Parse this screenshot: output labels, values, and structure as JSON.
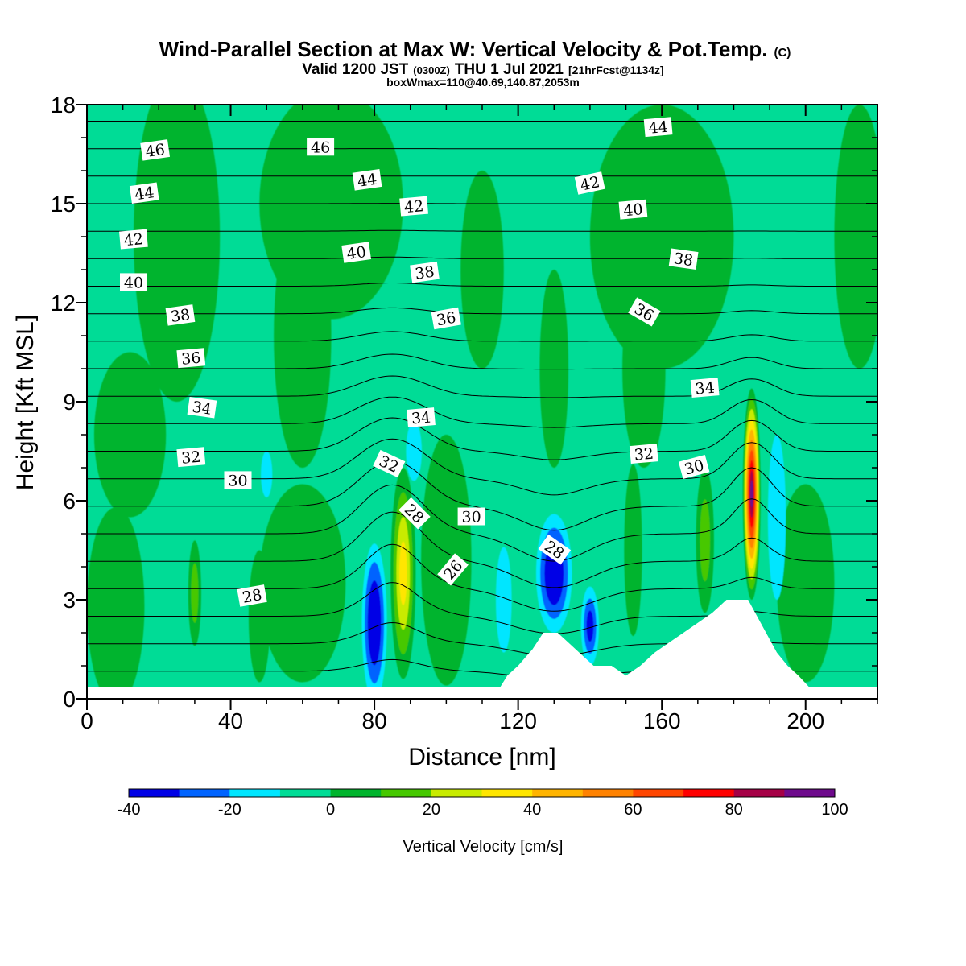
{
  "header": {
    "title": "Wind-Parallel Section at Max W: Vertical Velocity & Pot.Temp.",
    "title_mark": "(C)",
    "valid_prefix": "Valid 1200 JST",
    "valid_utc": "(0300Z)",
    "valid_date": "THU 1 Jul 2021",
    "forecast": "[21hrFcst@1134z]",
    "boxinfo": "boxWmax=110@40.69,140.87,2053m"
  },
  "chart_data": {
    "type": "heatmap",
    "xlabel": "Distance [nm]",
    "ylabel": "Height [Kft MSL]",
    "xlim": [
      0,
      220
    ],
    "ylim": [
      0,
      18
    ],
    "xticks": [
      "0",
      "40",
      "80",
      "120",
      "160",
      "200"
    ],
    "yticks": [
      "0",
      "3",
      "6",
      "9",
      "12",
      "15",
      "18"
    ],
    "colorbar": {
      "label": "Vertical Velocity [cm/s]",
      "tick_labels": [
        "-40",
        "-20",
        "0",
        "20",
        "40",
        "60",
        "80",
        "100"
      ],
      "levels": [
        -40,
        -30,
        -20,
        -10,
        0,
        10,
        20,
        30,
        40,
        50,
        60,
        70,
        80,
        90,
        100
      ],
      "colors": [
        "#0000e6",
        "#0064ff",
        "#00e6ff",
        "#00dc96",
        "#00b42d",
        "#46c800",
        "#c8eb00",
        "#ffe600",
        "#ffb400",
        "#ff8200",
        "#ff4600",
        "#ff0000",
        "#a50046",
        "#6e0a8c"
      ]
    },
    "background_level_color": "#00dc96",
    "wfield": [
      {
        "x": 80,
        "y": 2.3,
        "rx": 3.5,
        "ry": 2.4,
        "value": -40
      },
      {
        "x": 130,
        "y": 3.8,
        "rx": 5,
        "ry": 1.8,
        "value": -40
      },
      {
        "x": 140,
        "y": 2.2,
        "rx": 2.5,
        "ry": 1.2,
        "value": -35
      },
      {
        "x": 50,
        "y": 6.8,
        "rx": 1.6,
        "ry": 0.7,
        "value": -15
      },
      {
        "x": 91,
        "y": 7.5,
        "rx": 2.2,
        "ry": 0.9,
        "value": -15
      },
      {
        "x": 116,
        "y": 3.0,
        "rx": 2.2,
        "ry": 1.6,
        "value": -15
      },
      {
        "x": 192,
        "y": 5.5,
        "rx": 2.5,
        "ry": 2.5,
        "value": -15
      },
      {
        "x": 88,
        "y": 3.8,
        "rx": 3.5,
        "ry": 3.2,
        "value": 45
      },
      {
        "x": 185,
        "y": 6.2,
        "rx": 2.5,
        "ry": 3.2,
        "value": 100
      },
      {
        "x": 30,
        "y": 3.2,
        "rx": 1.8,
        "ry": 1.6,
        "value": 25
      },
      {
        "x": 172,
        "y": 4.8,
        "rx": 2.5,
        "ry": 2.2,
        "value": 25
      },
      {
        "x": 152,
        "y": 4.5,
        "rx": 2.5,
        "ry": 2.6,
        "value": 15
      },
      {
        "x": 8,
        "y": 2.8,
        "rx": 8,
        "ry": 3.0,
        "value": 15
      },
      {
        "x": 48,
        "y": 2.5,
        "rx": 3,
        "ry": 2.0,
        "value": 15
      },
      {
        "x": 25,
        "y": 14,
        "rx": 12,
        "ry": 5,
        "value": 5
      },
      {
        "x": 68,
        "y": 15,
        "rx": 20,
        "ry": 3.5,
        "value": 5
      },
      {
        "x": 60,
        "y": 11,
        "rx": 8,
        "ry": 4,
        "value": 5
      },
      {
        "x": 110,
        "y": 13,
        "rx": 6,
        "ry": 3,
        "value": 5
      },
      {
        "x": 130,
        "y": 10,
        "rx": 4,
        "ry": 3,
        "value": 5
      },
      {
        "x": 160,
        "y": 14,
        "rx": 20,
        "ry": 4,
        "value": 5
      },
      {
        "x": 155,
        "y": 10,
        "rx": 6,
        "ry": 3,
        "value": 5
      },
      {
        "x": 215,
        "y": 14,
        "rx": 7,
        "ry": 4,
        "value": 5
      },
      {
        "x": 100,
        "y": 4.2,
        "rx": 7,
        "ry": 3.8,
        "value": 5
      },
      {
        "x": 200,
        "y": 3.5,
        "rx": 8,
        "ry": 3.0,
        "value": 5
      },
      {
        "x": 60,
        "y": 3.5,
        "rx": 12,
        "ry": 3.0,
        "value": 5
      },
      {
        "x": 12,
        "y": 8,
        "rx": 10,
        "ry": 2.5,
        "value": 5
      }
    ],
    "terrain": [
      {
        "x": 0,
        "h": 0.35
      },
      {
        "x": 115,
        "h": 0.35
      },
      {
        "x": 117,
        "h": 0.7
      },
      {
        "x": 120,
        "h": 1.0
      },
      {
        "x": 124,
        "h": 1.5
      },
      {
        "x": 127,
        "h": 2.0
      },
      {
        "x": 131,
        "h": 2.0
      },
      {
        "x": 134,
        "h": 1.7
      },
      {
        "x": 137,
        "h": 1.4
      },
      {
        "x": 141,
        "h": 1.0
      },
      {
        "x": 146,
        "h": 1.0
      },
      {
        "x": 150,
        "h": 0.7
      },
      {
        "x": 154,
        "h": 1.0
      },
      {
        "x": 158,
        "h": 1.4
      },
      {
        "x": 162,
        "h": 1.7
      },
      {
        "x": 166,
        "h": 2.0
      },
      {
        "x": 170,
        "h": 2.3
      },
      {
        "x": 174,
        "h": 2.6
      },
      {
        "x": 178,
        "h": 3.0
      },
      {
        "x": 184,
        "h": 3.0
      },
      {
        "x": 186,
        "h": 2.6
      },
      {
        "x": 189,
        "h": 2.0
      },
      {
        "x": 192,
        "h": 1.4
      },
      {
        "x": 195,
        "h": 1.0
      },
      {
        "x": 198,
        "h": 0.7
      },
      {
        "x": 201,
        "h": 0.35
      },
      {
        "x": 220,
        "h": 0.35
      }
    ],
    "theta_contours": {
      "min": 25,
      "max": 47,
      "step": 1
    },
    "contour_labels": [
      {
        "text": "46",
        "x": 19,
        "y": 16.6,
        "angle": -8
      },
      {
        "text": "44",
        "x": 16,
        "y": 15.3,
        "angle": -8
      },
      {
        "text": "42",
        "x": 13,
        "y": 13.9,
        "angle": -5
      },
      {
        "text": "40",
        "x": 13,
        "y": 12.6,
        "angle": 0
      },
      {
        "text": "38",
        "x": 26,
        "y": 11.6,
        "angle": -8
      },
      {
        "text": "36",
        "x": 29,
        "y": 10.3,
        "angle": -5
      },
      {
        "text": "34",
        "x": 32,
        "y": 8.8,
        "angle": 8
      },
      {
        "text": "32",
        "x": 29,
        "y": 7.3,
        "angle": -5
      },
      {
        "text": "30",
        "x": 42,
        "y": 6.6,
        "angle": 0
      },
      {
        "text": "28",
        "x": 46,
        "y": 3.1,
        "angle": -10
      },
      {
        "text": "46",
        "x": 65,
        "y": 16.7,
        "angle": 0
      },
      {
        "text": "44",
        "x": 78,
        "y": 15.7,
        "angle": -8
      },
      {
        "text": "40",
        "x": 75,
        "y": 13.5,
        "angle": -8
      },
      {
        "text": "42",
        "x": 91,
        "y": 14.9,
        "angle": -5
      },
      {
        "text": "38",
        "x": 94,
        "y": 12.9,
        "angle": -8
      },
      {
        "text": "36",
        "x": 100,
        "y": 11.5,
        "angle": -10
      },
      {
        "text": "34",
        "x": 93,
        "y": 8.5,
        "angle": -5
      },
      {
        "text": "32",
        "x": 84,
        "y": 7.1,
        "angle": 25
      },
      {
        "text": "28",
        "x": 91,
        "y": 5.6,
        "angle": 45
      },
      {
        "text": "30",
        "x": 107,
        "y": 5.5,
        "angle": 0
      },
      {
        "text": "26",
        "x": 102,
        "y": 3.9,
        "angle": -50
      },
      {
        "text": "28",
        "x": 130,
        "y": 4.5,
        "angle": 35
      },
      {
        "text": "44",
        "x": 159,
        "y": 17.3,
        "angle": -5
      },
      {
        "text": "42",
        "x": 140,
        "y": 15.6,
        "angle": -12
      },
      {
        "text": "40",
        "x": 152,
        "y": 14.8,
        "angle": -5
      },
      {
        "text": "38",
        "x": 166,
        "y": 13.3,
        "angle": 8
      },
      {
        "text": "36",
        "x": 155,
        "y": 11.7,
        "angle": 30
      },
      {
        "text": "34",
        "x": 172,
        "y": 9.4,
        "angle": -5
      },
      {
        "text": "32",
        "x": 155,
        "y": 7.4,
        "angle": -5
      },
      {
        "text": "30",
        "x": 169,
        "y": 7.0,
        "angle": -15
      }
    ]
  }
}
